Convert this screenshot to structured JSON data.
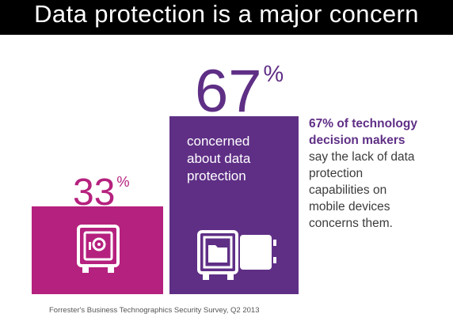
{
  "title": "Data protection is a major concern",
  "chart_data": {
    "type": "bar",
    "categories": [
      "",
      "concerned about data protection"
    ],
    "values": [
      33,
      67
    ],
    "ylim": [
      0,
      100
    ],
    "bars": [
      {
        "value": 33,
        "number": "33",
        "unit": "%",
        "color": "#b5217e",
        "icon": "safe-icon"
      },
      {
        "value": 67,
        "number": "67",
        "unit": "%",
        "color": "#5f2f86",
        "icon": "open-safe-icon",
        "caption_lines": [
          "concerned",
          "about data",
          "protection"
        ]
      }
    ]
  },
  "side": {
    "highlight_lines": [
      "67% of technology",
      "decision makers"
    ],
    "body_lines": [
      "say the lack of data",
      "protection",
      "capabilities on",
      "mobile devices",
      "concerns them."
    ]
  },
  "source": "Forrester's Business Technographics Security Survey, Q2 2013",
  "colors": {
    "magenta": "#b5217e",
    "purple": "#5f2f86",
    "title_bg": "#000000",
    "text": "#3b3b3b"
  }
}
